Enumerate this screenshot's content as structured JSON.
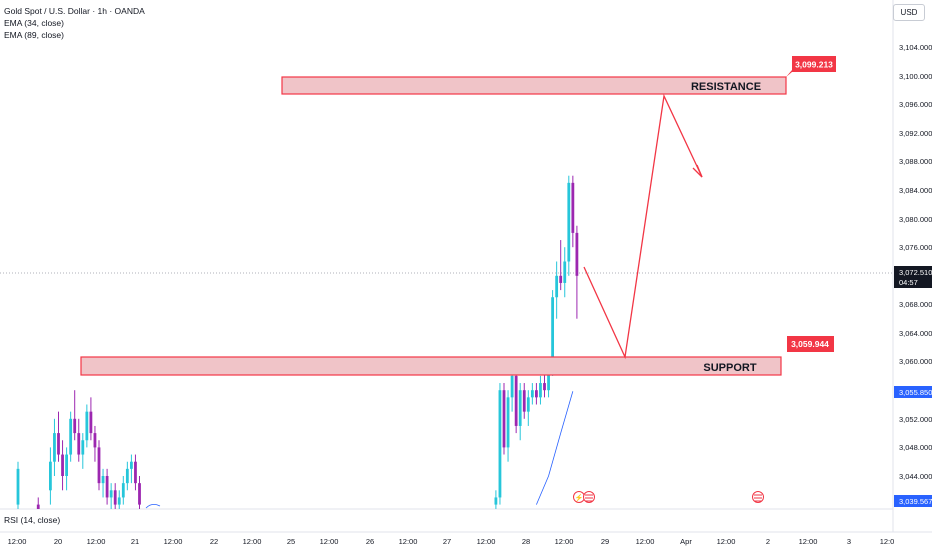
{
  "legend": {
    "symbol": "Gold Spot / U.S. Dollar · 1h · OANDA",
    "ema34": "EMA (34, close)",
    "ema89": "EMA (89, close)"
  },
  "currency": "USD",
  "rsi_label": "RSI (14, close)",
  "price_axis": {
    "ticks": [
      "3,104.000",
      "3,100.000",
      "3,096.000",
      "3,092.000",
      "3,088.000",
      "3,084.000",
      "3,080.000",
      "3,076.000",
      "3,068.000",
      "3,064.000",
      "3,060.000",
      "3,052.000",
      "3,048.000",
      "3,044.000"
    ],
    "current_price": "3,072.510",
    "countdown": "04:57",
    "ema34_value": "3,055.850",
    "ema89_value": "3,039.567",
    "colors": {
      "current": "#131722",
      "ema": "#2962ff",
      "accent": "#f23645"
    }
  },
  "time_axis": [
    "12:00",
    "20",
    "12:00",
    "21",
    "12:00",
    "22",
    "12:00",
    "25",
    "12:00",
    "26",
    "12:00",
    "27",
    "12:00",
    "28",
    "12:00",
    "29",
    "12:00",
    "Apr",
    "12:00",
    "2",
    "12:00",
    "3",
    "12:0"
  ],
  "annotations": {
    "resistance": {
      "label": "RESISTANCE",
      "price": "3,099.213"
    },
    "support": {
      "label": "SUPPORT",
      "price": "3,059.944"
    }
  },
  "chart_data": {
    "type": "candlestick",
    "ylim": [
      3038,
      3108
    ],
    "candles": [
      {
        "i": 0,
        "o": 3040,
        "h": 3046,
        "l": 3038,
        "c": 3045
      },
      {
        "i": 5,
        "o": 3040,
        "h": 3041,
        "l": 3038,
        "c": 3039
      },
      {
        "i": 8,
        "o": 3042,
        "h": 3048,
        "l": 3040,
        "c": 3046
      },
      {
        "i": 9,
        "o": 3046,
        "h": 3052,
        "l": 3044,
        "c": 3050
      },
      {
        "i": 10,
        "o": 3050,
        "h": 3053,
        "l": 3046,
        "c": 3047
      },
      {
        "i": 11,
        "o": 3047,
        "h": 3049,
        "l": 3042,
        "c": 3044
      },
      {
        "i": 12,
        "o": 3044,
        "h": 3048,
        "l": 3042,
        "c": 3047
      },
      {
        "i": 13,
        "o": 3047,
        "h": 3053,
        "l": 3046,
        "c": 3052
      },
      {
        "i": 14,
        "o": 3052,
        "h": 3056,
        "l": 3049,
        "c": 3050
      },
      {
        "i": 15,
        "o": 3050,
        "h": 3052,
        "l": 3046,
        "c": 3047
      },
      {
        "i": 16,
        "o": 3047,
        "h": 3050,
        "l": 3045,
        "c": 3049
      },
      {
        "i": 17,
        "o": 3049,
        "h": 3054,
        "l": 3048,
        "c": 3053
      },
      {
        "i": 18,
        "o": 3053,
        "h": 3055,
        "l": 3049,
        "c": 3050
      },
      {
        "i": 19,
        "o": 3050,
        "h": 3051,
        "l": 3046,
        "c": 3048
      },
      {
        "i": 20,
        "o": 3048,
        "h": 3049,
        "l": 3042,
        "c": 3043
      },
      {
        "i": 21,
        "o": 3043,
        "h": 3045,
        "l": 3041,
        "c": 3044
      },
      {
        "i": 22,
        "o": 3044,
        "h": 3045,
        "l": 3040,
        "c": 3041
      },
      {
        "i": 23,
        "o": 3041,
        "h": 3043,
        "l": 3039,
        "c": 3042
      },
      {
        "i": 24,
        "o": 3042,
        "h": 3043,
        "l": 3039,
        "c": 3040
      },
      {
        "i": 25,
        "o": 3040,
        "h": 3042,
        "l": 3038,
        "c": 3041
      },
      {
        "i": 26,
        "o": 3041,
        "h": 3044,
        "l": 3040,
        "c": 3043
      },
      {
        "i": 27,
        "o": 3043,
        "h": 3046,
        "l": 3042,
        "c": 3045
      },
      {
        "i": 28,
        "o": 3045,
        "h": 3047,
        "l": 3043,
        "c": 3046
      },
      {
        "i": 29,
        "o": 3046,
        "h": 3047,
        "l": 3042,
        "c": 3043
      },
      {
        "i": 30,
        "o": 3043,
        "h": 3044,
        "l": 3039,
        "c": 3040
      },
      {
        "i": 118,
        "o": 3040,
        "h": 3042,
        "l": 3038,
        "c": 3041
      },
      {
        "i": 119,
        "o": 3041,
        "h": 3057,
        "l": 3040,
        "c": 3056
      },
      {
        "i": 120,
        "o": 3056,
        "h": 3057,
        "l": 3047,
        "c": 3048
      },
      {
        "i": 121,
        "o": 3048,
        "h": 3056,
        "l": 3046,
        "c": 3055
      },
      {
        "i": 122,
        "o": 3055,
        "h": 3059,
        "l": 3053,
        "c": 3058
      },
      {
        "i": 123,
        "o": 3058,
        "h": 3060,
        "l": 3050,
        "c": 3051
      },
      {
        "i": 124,
        "o": 3051,
        "h": 3057,
        "l": 3049,
        "c": 3056
      },
      {
        "i": 125,
        "o": 3056,
        "h": 3057,
        "l": 3052,
        "c": 3053
      },
      {
        "i": 126,
        "o": 3053,
        "h": 3056,
        "l": 3051,
        "c": 3055
      },
      {
        "i": 127,
        "o": 3055,
        "h": 3057,
        "l": 3054,
        "c": 3056
      },
      {
        "i": 128,
        "o": 3056,
        "h": 3057,
        "l": 3054,
        "c": 3055
      },
      {
        "i": 129,
        "o": 3055,
        "h": 3058,
        "l": 3054,
        "c": 3057
      },
      {
        "i": 130,
        "o": 3057,
        "h": 3059,
        "l": 3055,
        "c": 3056
      },
      {
        "i": 131,
        "o": 3056,
        "h": 3060,
        "l": 3055,
        "c": 3059
      },
      {
        "i": 132,
        "o": 3059,
        "h": 3070,
        "l": 3058,
        "c": 3069
      },
      {
        "i": 133,
        "o": 3069,
        "h": 3074,
        "l": 3066,
        "c": 3072
      },
      {
        "i": 134,
        "o": 3072,
        "h": 3077,
        "l": 3070,
        "c": 3071
      },
      {
        "i": 135,
        "o": 3071,
        "h": 3076,
        "l": 3069,
        "c": 3074
      },
      {
        "i": 136,
        "o": 3074,
        "h": 3086,
        "l": 3072,
        "c": 3085
      },
      {
        "i": 137,
        "o": 3085,
        "h": 3086,
        "l": 3076,
        "c": 3078
      },
      {
        "i": 138,
        "o": 3078,
        "h": 3079,
        "l": 3066,
        "c": 3072
      }
    ],
    "ema34": [
      [
        128,
        3040
      ],
      [
        131,
        3044
      ],
      [
        134,
        3050
      ],
      [
        137,
        3055.85
      ]
    ],
    "zones": [
      {
        "label": "RESISTANCE",
        "from": 3097.6,
        "to": 3099.6,
        "x_start": 69,
        "x_end": 189
      },
      {
        "label": "SUPPORT",
        "from": 3058.3,
        "to": 3060.3,
        "x_start": 19,
        "x_end": 188
      }
    ],
    "projection": [
      [
        140,
        3072
      ],
      [
        150,
        3060
      ],
      [
        160,
        3097
      ],
      [
        169,
        3085
      ]
    ]
  }
}
